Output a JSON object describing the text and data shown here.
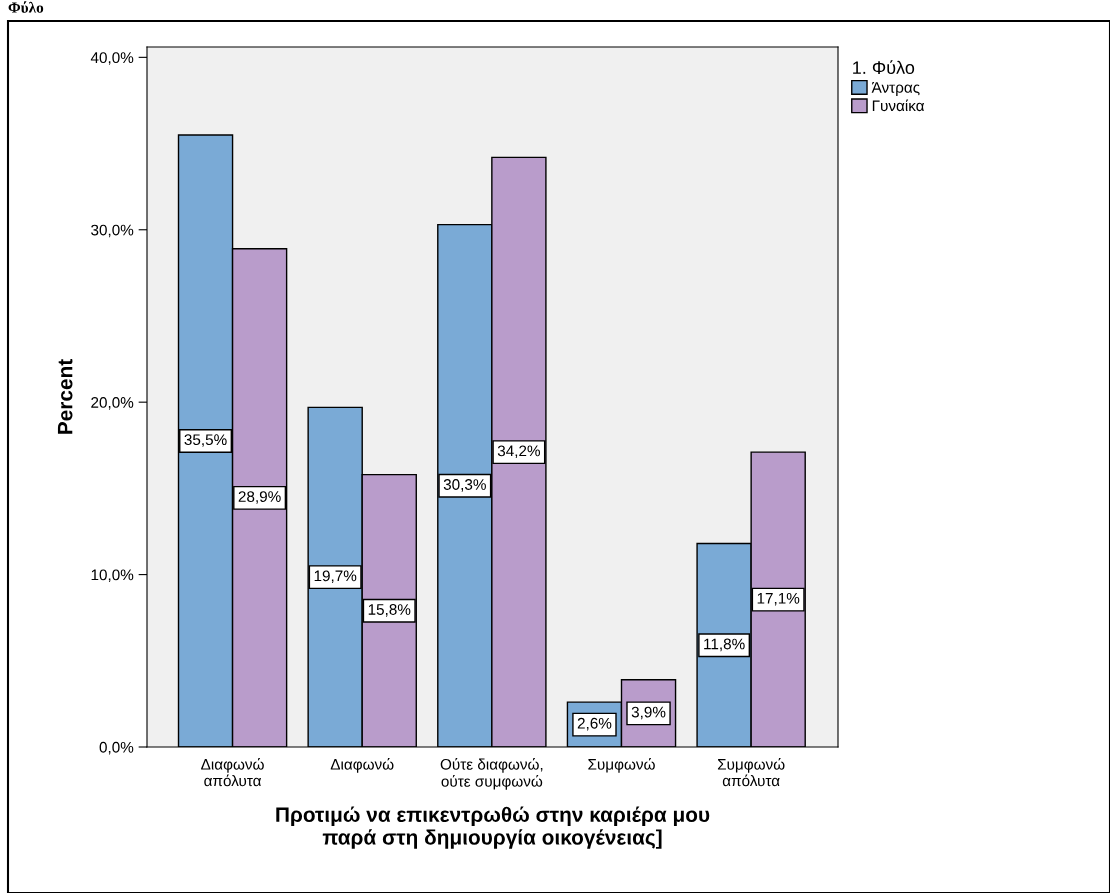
{
  "chart_data": {
    "type": "bar",
    "title": "Φύλο",
    "categories": [
      "Διαφωνώ\nαπόλυτα",
      "Διαφωνώ",
      "Ούτε διαφωνώ,\nούτε συμφωνώ",
      "Συμφωνώ",
      "Συμφωνώ\nαπόλυτα"
    ],
    "series": [
      {
        "name": "Άντρας",
        "color": "#7aaad6",
        "values": [
          35.5,
          19.7,
          30.3,
          2.6,
          11.8
        ],
        "value_labels": [
          "35,5%",
          "19,7%",
          "30,3%",
          "2,6%",
          "11,8%"
        ]
      },
      {
        "name": "Γυναίκα",
        "color": "#b99ccb",
        "values": [
          28.9,
          15.8,
          34.2,
          3.9,
          17.1
        ],
        "value_labels": [
          "28,9%",
          "15,8%",
          "34,2%",
          "3,9%",
          "17,1%"
        ]
      }
    ],
    "xlabel": "Προτιμώ να επικεντρωθώ στην καριέρα μου\nπαρά στη δημιουργία οικογένειας]",
    "ylabel": "Percent",
    "legend_title": "1. Φύλο",
    "legend": "top right",
    "ylim": [
      0,
      40.6
    ],
    "yticks": [
      {
        "value": 0,
        "label": "0,0%"
      },
      {
        "value": 10,
        "label": "10,0%"
      },
      {
        "value": 20,
        "label": "20,0%"
      },
      {
        "value": 30,
        "label": "30,0%"
      },
      {
        "value": 40,
        "label": "40,0%"
      }
    ],
    "grid": false
  }
}
